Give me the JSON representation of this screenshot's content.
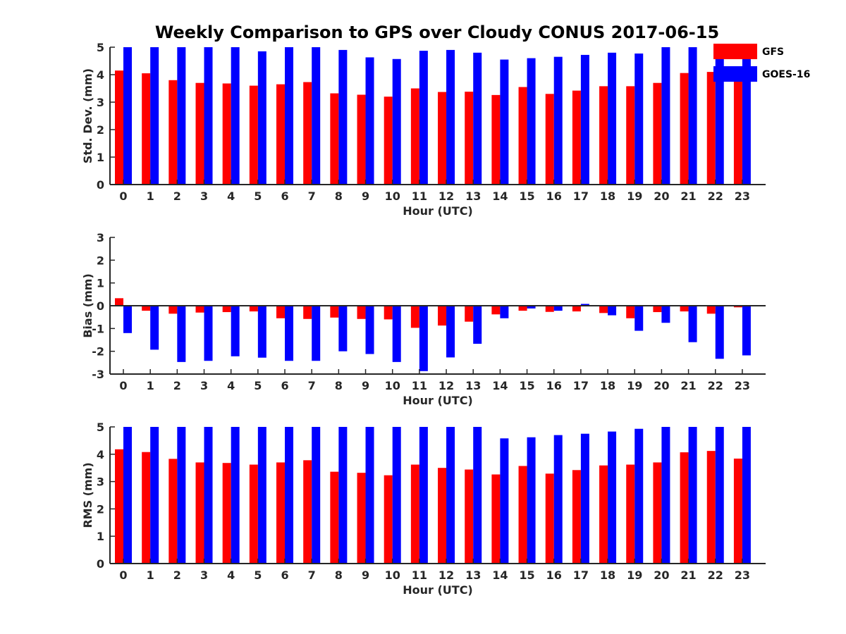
{
  "figure": {
    "title": "Weekly Comparison to GPS over Cloudy CONUS 2017-06-15",
    "legend": [
      {
        "name": "GFS",
        "color": "#ff0000"
      },
      {
        "name": "GOES-16",
        "color": "#0000ff"
      }
    ]
  },
  "chart_data": [
    {
      "type": "bar",
      "xlabel": "Hour (UTC)",
      "ylabel": "Std. Dev. (mm)",
      "ylim": [
        0,
        5
      ],
      "yticks": [
        "0",
        "1",
        "2",
        "3",
        "4",
        "5"
      ],
      "categories": [
        "0",
        "1",
        "2",
        "3",
        "4",
        "5",
        "6",
        "7",
        "8",
        "9",
        "10",
        "11",
        "12",
        "13",
        "14",
        "15",
        "16",
        "17",
        "18",
        "19",
        "20",
        "21",
        "22",
        "23"
      ],
      "series": [
        {
          "name": "GFS",
          "color": "#ff0000",
          "values": [
            4.15,
            4.05,
            3.8,
            3.7,
            3.68,
            3.6,
            3.65,
            3.73,
            3.32,
            3.27,
            3.2,
            3.5,
            3.37,
            3.38,
            3.26,
            3.55,
            3.3,
            3.42,
            3.58,
            3.58,
            3.7,
            4.06,
            4.1,
            3.8
          ]
        },
        {
          "name": "GOES-16",
          "color": "#0000ff",
          "values": [
            5.0,
            5.0,
            5.0,
            5.0,
            5.0,
            4.85,
            5.0,
            5.0,
            4.9,
            4.63,
            4.57,
            4.87,
            4.9,
            4.8,
            4.55,
            4.6,
            4.65,
            4.72,
            4.8,
            4.77,
            5.0,
            5.0,
            5.0,
            4.6
          ]
        }
      ],
      "grid": false
    },
    {
      "type": "bar",
      "xlabel": "Hour (UTC)",
      "ylabel": "Bias (mm)",
      "ylim": [
        -3,
        3
      ],
      "yticks": [
        "-3",
        "-2",
        "-1",
        "0",
        "1",
        "2",
        "3"
      ],
      "categories": [
        "0",
        "1",
        "2",
        "3",
        "4",
        "5",
        "6",
        "7",
        "8",
        "9",
        "10",
        "11",
        "12",
        "13",
        "14",
        "15",
        "16",
        "17",
        "18",
        "19",
        "20",
        "21",
        "22",
        "23"
      ],
      "series": [
        {
          "name": "GFS",
          "color": "#ff0000",
          "values": [
            0.33,
            -0.22,
            -0.35,
            -0.3,
            -0.28,
            -0.25,
            -0.55,
            -0.58,
            -0.52,
            -0.58,
            -0.6,
            -0.97,
            -0.87,
            -0.7,
            -0.38,
            -0.22,
            -0.27,
            -0.25,
            -0.32,
            -0.55,
            -0.28,
            -0.25,
            -0.35,
            -0.07
          ]
        },
        {
          "name": "GOES-16",
          "color": "#0000ff",
          "values": [
            -1.2,
            -1.93,
            -2.47,
            -2.42,
            -2.22,
            -2.28,
            -2.42,
            -2.42,
            -2.0,
            -2.12,
            -2.47,
            -2.87,
            -2.27,
            -1.67,
            -0.55,
            -0.12,
            -0.22,
            0.08,
            -0.42,
            -1.1,
            -0.75,
            -1.6,
            -2.33,
            -2.18
          ]
        }
      ],
      "grid": false
    },
    {
      "type": "bar",
      "xlabel": "Hour (UTC)",
      "ylabel": "RMS (mm)",
      "ylim": [
        0,
        5
      ],
      "yticks": [
        "0",
        "1",
        "2",
        "3",
        "4",
        "5"
      ],
      "categories": [
        "0",
        "1",
        "2",
        "3",
        "4",
        "5",
        "6",
        "7",
        "8",
        "9",
        "10",
        "11",
        "12",
        "13",
        "14",
        "15",
        "16",
        "17",
        "18",
        "19",
        "20",
        "21",
        "22",
        "23"
      ],
      "series": [
        {
          "name": "GFS",
          "color": "#ff0000",
          "values": [
            4.18,
            4.08,
            3.83,
            3.7,
            3.68,
            3.62,
            3.7,
            3.78,
            3.36,
            3.32,
            3.23,
            3.62,
            3.5,
            3.44,
            3.26,
            3.57,
            3.29,
            3.42,
            3.59,
            3.62,
            3.7,
            4.07,
            4.12,
            3.84
          ]
        },
        {
          "name": "GOES-16",
          "color": "#0000ff",
          "values": [
            5.0,
            5.0,
            5.0,
            5.0,
            5.0,
            5.0,
            5.0,
            5.0,
            5.0,
            5.0,
            5.0,
            5.0,
            5.0,
            5.0,
            4.58,
            4.62,
            4.7,
            4.75,
            4.83,
            4.93,
            5.0,
            5.0,
            5.0,
            5.0
          ]
        }
      ],
      "grid": false
    }
  ]
}
